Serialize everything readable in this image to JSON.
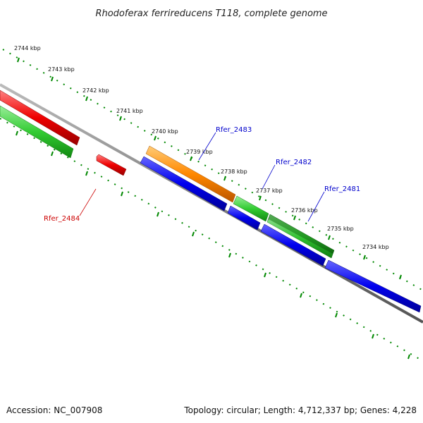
{
  "title": "Rhodoferax ferrireducens T118, complete genome",
  "footer": {
    "accession": "Accession: NC_007908",
    "summary": "Topology: circular; Length: 4,712,337 bp; Genes: 4,228"
  },
  "ticks": [
    "2744 kbp",
    "2743 kbp",
    "2742 kbp",
    "2741 kbp",
    "2740 kbp",
    "2739 kbp",
    "2738 kbp",
    "2737 kbp",
    "2736 kbp",
    "2735 kbp",
    "2734 kbp"
  ],
  "gene_labels": {
    "rfer_2483": "Rfer_2483",
    "rfer_2482": "Rfer_2482",
    "rfer_2481": "Rfer_2481",
    "rfer_2484": "Rfer_2484"
  },
  "colors": {
    "red": "#ee0000",
    "green": "#33cc33",
    "dark_green": "#229922",
    "orange": "#ff8800",
    "blue": "#0000ee",
    "backbone": "#808080",
    "ticks": "#008800"
  }
}
